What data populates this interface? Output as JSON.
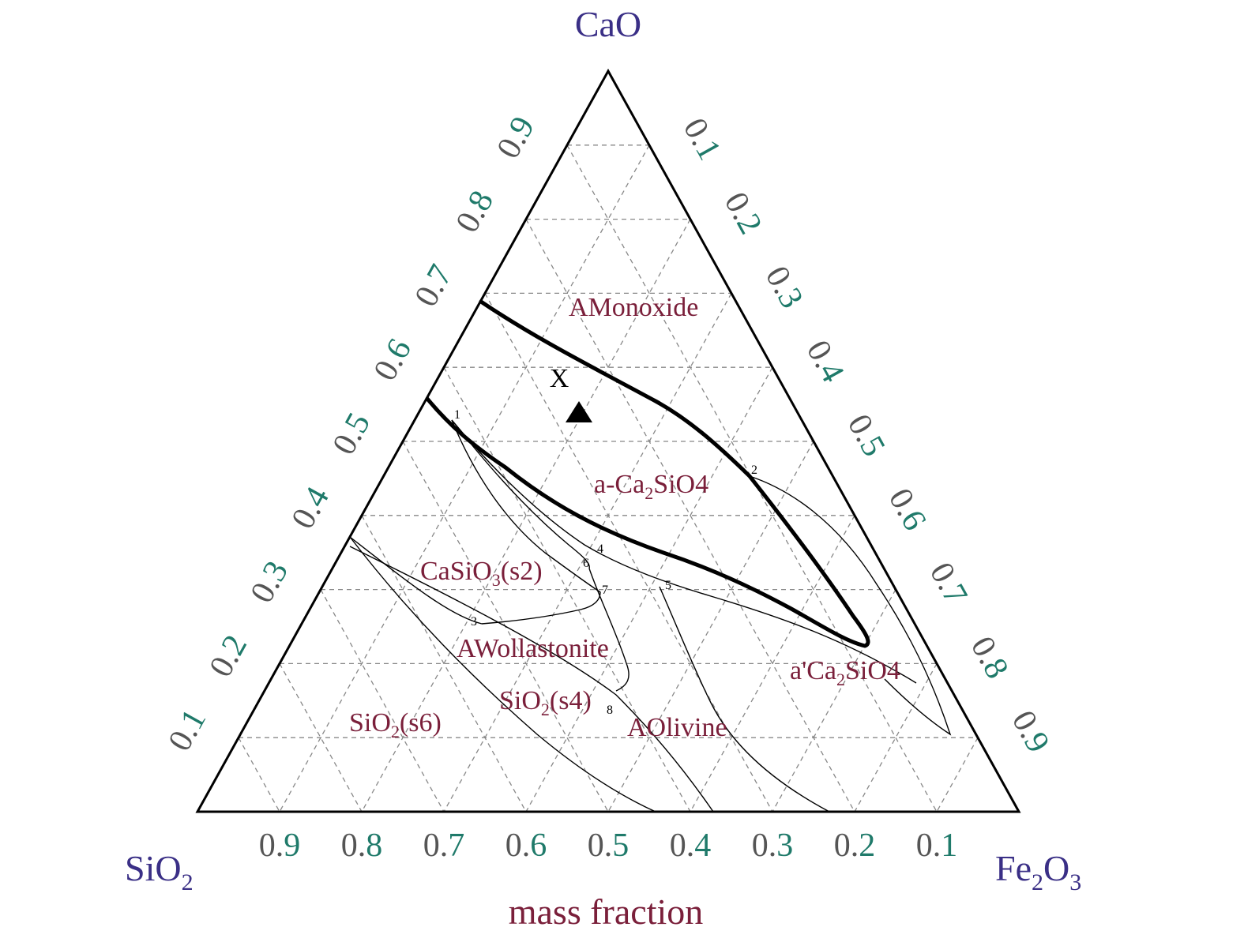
{
  "vertices": {
    "top": {
      "base": "CaO",
      "sub": "",
      "tail": ""
    },
    "left": {
      "base": "SiO",
      "sub": "2",
      "tail": ""
    },
    "right": {
      "base": "Fe",
      "sub": "2",
      "tail": "O",
      "sub2": "3"
    }
  },
  "axis_caption": "mass fraction",
  "bottom_ticks": [
    "0.9",
    "0.8",
    "0.7",
    "0.6",
    "0.5",
    "0.4",
    "0.3",
    "0.2",
    "0.1"
  ],
  "left_ticks": [
    "0.1",
    "0.2",
    "0.3",
    "0.4",
    "0.5",
    "0.6",
    "0.7",
    "0.8",
    "0.9"
  ],
  "right_ticks": [
    "0.1",
    "0.2",
    "0.3",
    "0.4",
    "0.5",
    "0.6",
    "0.7",
    "0.8",
    "0.9"
  ],
  "regions": [
    {
      "id": "amonoxide",
      "text": "AMonoxide",
      "sub": "",
      "after": ""
    },
    {
      "id": "a-ca2sio4",
      "text": "a-Ca",
      "sub": "2",
      "after": "SiO4"
    },
    {
      "id": "casio3-s2",
      "text": "CaSiO",
      "sub": "3",
      "after": "(s2)"
    },
    {
      "id": "awollastonite",
      "text": "AWollastonite",
      "sub": "",
      "after": ""
    },
    {
      "id": "a-prime-ca2sio4",
      "text": "a'Ca",
      "sub": "2",
      "after": "SiO4"
    },
    {
      "id": "sio2-s4",
      "text": "SiO",
      "sub": "2",
      "after": "(s4)"
    },
    {
      "id": "aolivine",
      "text": "AOlivine",
      "sub": "",
      "after": ""
    },
    {
      "id": "sio2-s6",
      "text": "SiO",
      "sub": "2",
      "after": "(s6)"
    }
  ],
  "marker": {
    "label": "X",
    "shape": "triangle"
  },
  "point_labels": [
    "1",
    "2",
    "3",
    "4",
    "5",
    "6",
    "7",
    "8"
  ],
  "colors": {
    "vertex_label": "#3a2f86",
    "region_label": "#7a1f3a",
    "tick_dark": "#555555",
    "tick_accent": "#1f7a6a",
    "grid": "#888888",
    "boundary": "#000000"
  }
}
